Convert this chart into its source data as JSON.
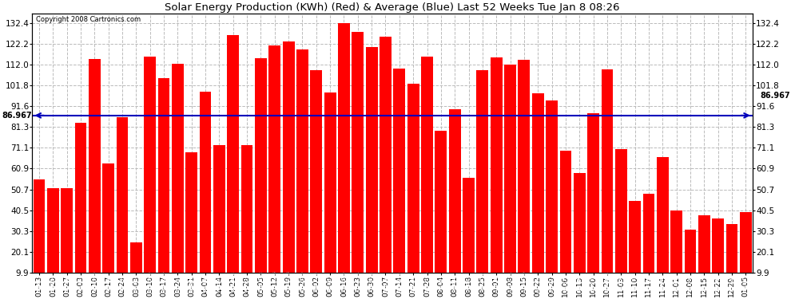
{
  "title": "Solar Energy Production (KWh) (Red) & Average (Blue) Last 52 Weeks Tue Jan 8 08:26",
  "copyright": "Copyright 2008 Cartronics.com",
  "average_line": 86.967,
  "ylim_min": 9.9,
  "ylim_max": 137.0,
  "yticks": [
    9.9,
    20.1,
    30.3,
    40.5,
    50.7,
    60.9,
    71.1,
    81.3,
    91.6,
    101.8,
    112.0,
    122.2,
    132.4
  ],
  "bar_color": "#FF0000",
  "avg_line_color": "#0000BB",
  "background_color": "#FFFFFF",
  "grid_color": "#BBBBBB",
  "dates": [
    "01-13",
    "01-20",
    "01-27",
    "02-03",
    "02-10",
    "02-17",
    "02-24",
    "03-03",
    "03-10",
    "03-17",
    "03-24",
    "03-31",
    "04-07",
    "04-14",
    "04-21",
    "04-28",
    "05-05",
    "05-12",
    "05-19",
    "05-26",
    "06-02",
    "06-09",
    "06-16",
    "06-23",
    "06-30",
    "07-07",
    "07-14",
    "07-21",
    "07-28",
    "08-04",
    "08-11",
    "08-18",
    "08-25",
    "09-01",
    "09-08",
    "09-15",
    "09-22",
    "09-29",
    "10-06",
    "10-13",
    "10-20",
    "10-27",
    "11-03",
    "11-10",
    "11-17",
    "11-24",
    "12-01",
    "12-08",
    "12-15",
    "12-22",
    "12-29",
    "01-05"
  ],
  "values": [
    55.613,
    51.254,
    51.392,
    83.486,
    114.799,
    63.404,
    86.245,
    24.863,
    115.709,
    105.286,
    112.193,
    68.825,
    98.486,
    72.399,
    126.592,
    72.325,
    115.262,
    121.168,
    123.148,
    119.389,
    109.258,
    98.401,
    132.399,
    128.151,
    120.522,
    125.5,
    110.075,
    102.66,
    115.704,
    79.457,
    90.049,
    56.317,
    109.233,
    115.4,
    112.131,
    114.415,
    97.738,
    94.512,
    69.67,
    58.891,
    87.93,
    109.711,
    70.636,
    45.084,
    48.731,
    66.667,
    40.212,
    31.009,
    37.97,
    36.297,
    33.787,
    39.38
  ]
}
